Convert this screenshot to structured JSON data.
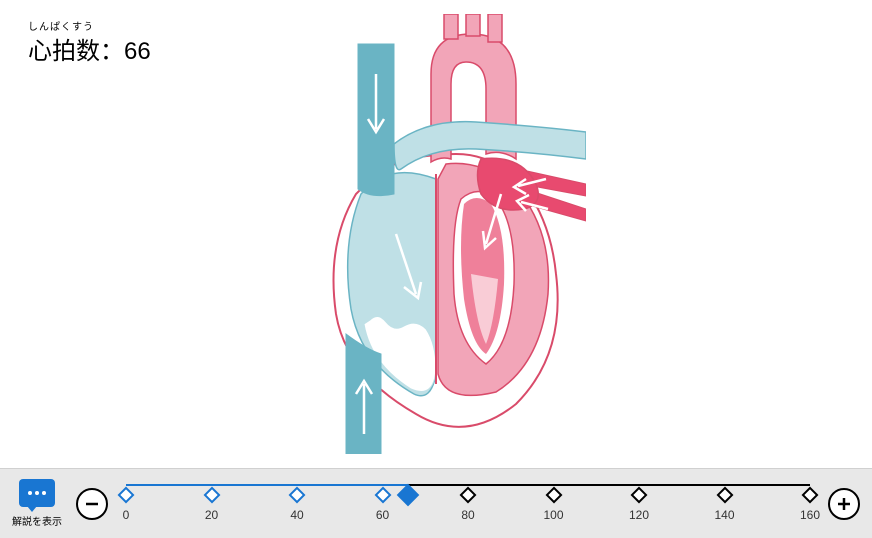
{
  "heartrate": {
    "ruby": "しんぱくすう",
    "label": "心拍数：",
    "value": 66
  },
  "diagram": {
    "colors": {
      "venous_fill": "#6ab4c4",
      "venous_light": "#bfe0e6",
      "arterial_fill": "#f2a5b8",
      "arterial_dark": "#e84a6f",
      "outline": "#d94b6a",
      "wall": "#ffffff"
    }
  },
  "toolbar": {
    "explain_label": "解説を表示",
    "minus_label": "−",
    "plus_label": "＋"
  },
  "slider": {
    "min": 0,
    "max": 160,
    "step": 20,
    "value": 66,
    "ticks": [
      0,
      20,
      40,
      60,
      80,
      100,
      120,
      140,
      160
    ],
    "active_color": "#1976d2",
    "inactive_color": "#000000"
  }
}
